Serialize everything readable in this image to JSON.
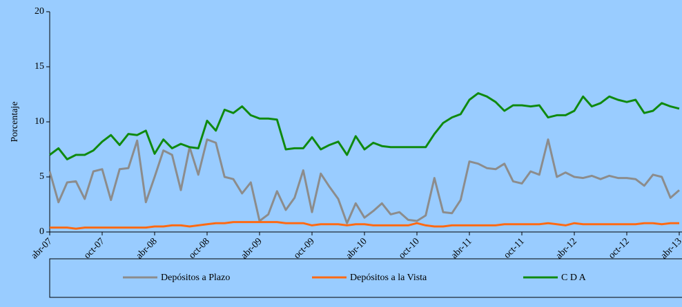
{
  "chart_data": {
    "type": "line",
    "y_label": "Porcentaje",
    "categories": [
      "abr-07",
      null,
      null,
      null,
      null,
      null,
      "oct-07",
      null,
      null,
      null,
      null,
      null,
      "abr-08",
      null,
      null,
      null,
      null,
      null,
      "oct-08",
      null,
      null,
      null,
      null,
      null,
      "abr-09",
      null,
      null,
      null,
      null,
      null,
      "oct-09",
      null,
      null,
      null,
      null,
      null,
      "abr-10",
      null,
      null,
      null,
      null,
      null,
      "oct-10",
      null,
      null,
      null,
      null,
      null,
      "abr-11",
      null,
      null,
      null,
      null,
      null,
      "oct-11",
      null,
      null,
      null,
      null,
      null,
      "abr-12",
      null,
      null,
      null,
      null,
      null,
      "oct-12",
      null,
      null,
      null,
      null,
      null,
      "abr-13"
    ],
    "series": [
      {
        "name": "Depósitos a Plazo",
        "color": "#8c8c8c",
        "values": [
          5.5,
          2.7,
          4.5,
          4.6,
          3.0,
          5.5,
          5.7,
          2.9,
          5.7,
          5.8,
          8.3,
          2.7,
          5.0,
          7.4,
          7.0,
          3.8,
          7.7,
          5.2,
          8.4,
          8.1,
          5.0,
          4.8,
          3.5,
          4.5,
          1.0,
          1.6,
          3.7,
          2.0,
          3.1,
          5.6,
          1.8,
          5.3,
          4.1,
          3.0,
          0.8,
          2.6,
          1.3,
          1.9,
          2.6,
          1.6,
          1.8,
          1.1,
          1.0,
          1.5,
          4.9,
          1.8,
          1.7,
          2.9,
          6.4,
          6.2,
          5.8,
          5.7,
          6.2,
          4.6,
          4.4,
          5.5,
          5.2,
          8.4,
          5.0,
          5.4,
          5.0,
          4.9,
          5.1,
          4.8,
          5.1,
          4.9,
          4.9,
          4.8,
          4.2,
          5.2,
          5.0,
          3.1,
          3.8
        ]
      },
      {
        "name": "Depósitos a la Vista",
        "color": "#ff6a13",
        "values": [
          0.4,
          0.4,
          0.4,
          0.3,
          0.4,
          0.4,
          0.4,
          0.4,
          0.4,
          0.4,
          0.4,
          0.4,
          0.5,
          0.5,
          0.6,
          0.6,
          0.5,
          0.6,
          0.7,
          0.8,
          0.8,
          0.9,
          0.9,
          0.9,
          0.9,
          0.9,
          0.9,
          0.8,
          0.8,
          0.8,
          0.6,
          0.7,
          0.7,
          0.7,
          0.6,
          0.7,
          0.7,
          0.6,
          0.6,
          0.6,
          0.6,
          0.6,
          0.8,
          0.6,
          0.5,
          0.5,
          0.6,
          0.6,
          0.6,
          0.6,
          0.6,
          0.6,
          0.7,
          0.7,
          0.7,
          0.7,
          0.7,
          0.8,
          0.7,
          0.6,
          0.8,
          0.7,
          0.7,
          0.7,
          0.7,
          0.7,
          0.7,
          0.7,
          0.8,
          0.8,
          0.7,
          0.8,
          0.8
        ]
      },
      {
        "name": "C D A",
        "color": "#0f8a0f",
        "values": [
          7.0,
          7.6,
          6.6,
          7.0,
          7.0,
          7.4,
          8.2,
          8.8,
          7.9,
          8.9,
          8.8,
          9.2,
          7.1,
          8.4,
          7.6,
          8.0,
          7.7,
          7.6,
          10.1,
          9.2,
          11.1,
          10.8,
          11.4,
          10.6,
          10.3,
          10.3,
          10.2,
          7.5,
          7.6,
          7.6,
          8.6,
          7.5,
          7.9,
          8.2,
          7.0,
          8.7,
          7.5,
          8.1,
          7.8,
          7.7,
          7.7,
          7.7,
          7.7,
          7.7,
          8.9,
          9.9,
          10.4,
          10.7,
          12.0,
          12.6,
          12.3,
          11.8,
          11.0,
          11.5,
          11.5,
          11.4,
          11.5,
          10.4,
          10.6,
          10.6,
          11.0,
          12.3,
          11.4,
          11.7,
          12.3,
          12.0,
          11.8,
          12.0,
          10.8,
          11.0,
          11.7,
          11.4,
          11.2
        ]
      }
    ],
    "ylim": [
      0,
      20
    ],
    "yticks": [
      0,
      5,
      10,
      15,
      20
    ],
    "legend": "bottom"
  }
}
